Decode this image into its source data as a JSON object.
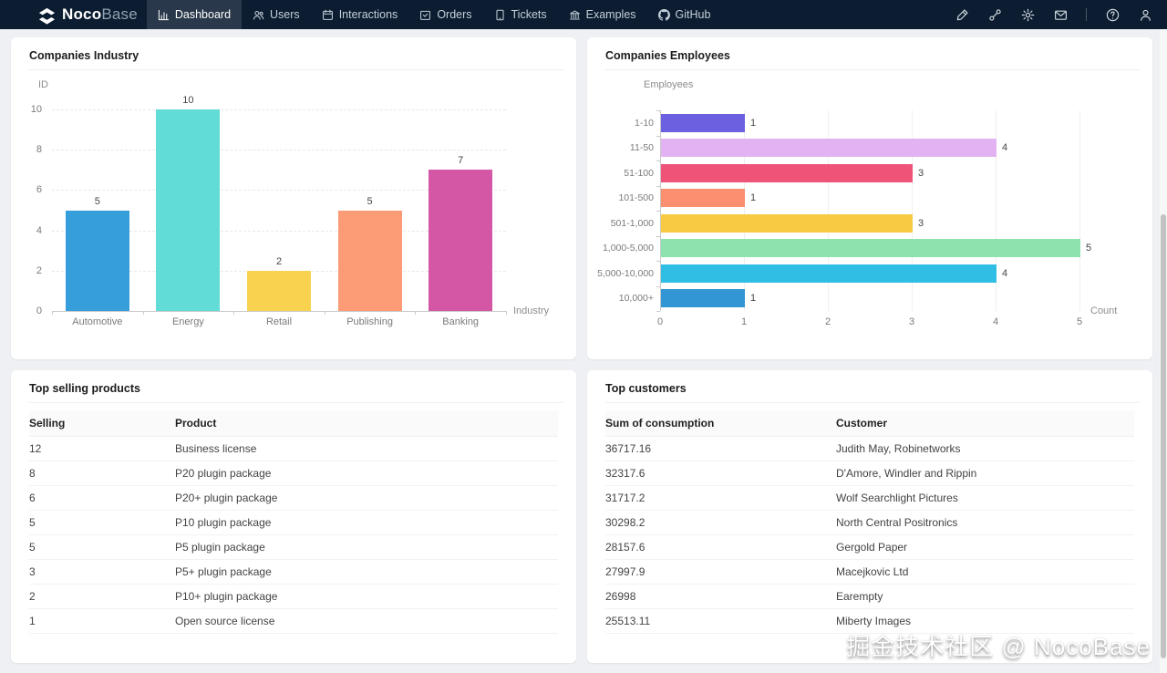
{
  "header": {
    "logo": {
      "bold": "Noco",
      "light": "Base"
    },
    "menu": [
      {
        "label": "Dashboard",
        "icon": "bar-chart",
        "active": true
      },
      {
        "label": "Users",
        "icon": "team",
        "active": false
      },
      {
        "label": "Interactions",
        "icon": "calendar",
        "active": false
      },
      {
        "label": "Orders",
        "icon": "carry-out",
        "active": false
      },
      {
        "label": "Tickets",
        "icon": "tablet",
        "active": false
      },
      {
        "label": "Examples",
        "icon": "bank",
        "active": false
      },
      {
        "label": "GitHub",
        "icon": "github",
        "active": false
      }
    ],
    "actions": [
      "highlight",
      "api",
      "setting",
      "mail",
      "divider",
      "question-circle",
      "user"
    ]
  },
  "cards": {
    "industry": {
      "title": "Companies Industry"
    },
    "employees": {
      "title": "Companies Employees"
    },
    "products": {
      "title": "Top selling products",
      "columns": [
        "Selling",
        "Product"
      ],
      "rows": [
        [
          "12",
          "Business license"
        ],
        [
          "8",
          "P20 plugin package"
        ],
        [
          "6",
          "P20+ plugin package"
        ],
        [
          "5",
          "P10 plugin package"
        ],
        [
          "5",
          "P5 plugin package"
        ],
        [
          "3",
          "P5+ plugin package"
        ],
        [
          "2",
          "P10+ plugin package"
        ],
        [
          "1",
          "Open source license"
        ]
      ]
    },
    "customers": {
      "title": "Top customers",
      "columns": [
        "Sum of consumption",
        "Customer"
      ],
      "rows": [
        [
          "36717.16",
          "Judith May, Robinetworks"
        ],
        [
          "32317.6",
          "D'Amore, Windler and Rippin"
        ],
        [
          "31717.2",
          "Wolf Searchlight Pictures"
        ],
        [
          "30298.2",
          "North Central Positronics"
        ],
        [
          "28157.6",
          "Gergold Paper"
        ],
        [
          "27997.9",
          "Macejkovic Ltd"
        ],
        [
          "26998",
          "Earempty"
        ],
        [
          "25513.11",
          "Miberty Images"
        ]
      ]
    }
  },
  "chart_data": [
    {
      "type": "bar",
      "orientation": "vertical",
      "title": "Companies Industry",
      "categories": [
        "Automotive",
        "Energy",
        "Retail",
        "Publishing",
        "Banking"
      ],
      "values": [
        5,
        10,
        2,
        5,
        7
      ],
      "colors": [
        "#369fdb",
        "#61dcd6",
        "#f9d34f",
        "#fb9c76",
        "#d457a5"
      ],
      "ylabel": "ID",
      "xlabel": "Industry",
      "yticks": [
        0,
        2,
        4,
        6,
        8,
        10
      ],
      "ylim": [
        0,
        10
      ],
      "grid": true,
      "legend": "none"
    },
    {
      "type": "bar",
      "orientation": "horizontal",
      "title": "Companies Employees",
      "categories": [
        "1-10",
        "11-50",
        "51-100",
        "101-500",
        "501-1,000",
        "1,000-5,000",
        "5,000-10,000",
        "10,000+"
      ],
      "values": [
        1,
        4,
        3,
        1,
        3,
        5,
        4,
        1
      ],
      "colors": [
        "#6b61e0",
        "#e3b2f2",
        "#ef5377",
        "#fb8f70",
        "#f8ca43",
        "#8ee2ae",
        "#31bee4",
        "#3295d4"
      ],
      "ylabel": "Employees",
      "xlabel": "Count",
      "xticks": [
        0,
        1,
        2,
        3,
        4,
        5
      ],
      "xlim": [
        0,
        5
      ],
      "grid": true,
      "legend": "none"
    }
  ],
  "watermark": "掘金技术社区 @ NocoBase"
}
